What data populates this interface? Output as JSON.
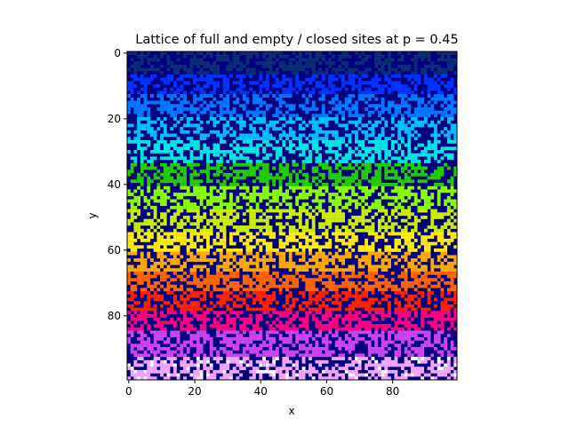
{
  "chart_data": {
    "type": "heatmap",
    "title": "Lattice of full and empty / closed sites at p = 0.45",
    "xlabel": "x",
    "ylabel": "y",
    "grid_size": 100,
    "xlim": [
      -0.5,
      99.5
    ],
    "ylim": [
      99.5,
      -0.5
    ],
    "y_inverted": true,
    "x_ticks": [
      0,
      20,
      40,
      60,
      80
    ],
    "y_ticks": [
      0,
      20,
      40,
      60,
      80
    ],
    "p": 0.45,
    "grid": false,
    "empty_color": "#00007f",
    "band_colors": [
      "#0b2d75",
      "#0033ff",
      "#0077ff",
      "#00bfff",
      "#00e5e5",
      "#22cc00",
      "#88ff00",
      "#ccee00",
      "#ffee00",
      "#ffaa00",
      "#ff6600",
      "#ff2200",
      "#ff0080",
      "#cc44ee",
      "#f2a6ff"
    ],
    "row_color_bands": [
      {
        "rows": [
          0,
          7
        ],
        "color": "#0b2d75"
      },
      {
        "rows": [
          7,
          13
        ],
        "color": "#0033ff"
      },
      {
        "rows": [
          13,
          20
        ],
        "color": "#0077ff"
      },
      {
        "rows": [
          20,
          27
        ],
        "color": "#00bfff"
      },
      {
        "rows": [
          27,
          34
        ],
        "color": "#00e5e5"
      },
      {
        "rows": [
          34,
          41
        ],
        "color": "#22cc00"
      },
      {
        "rows": [
          41,
          48
        ],
        "color": "#88ff00"
      },
      {
        "rows": [
          48,
          55
        ],
        "color": "#ccee00"
      },
      {
        "rows": [
          55,
          61
        ],
        "color": "#ffee00"
      },
      {
        "rows": [
          61,
          67
        ],
        "color": "#ffaa00"
      },
      {
        "rows": [
          67,
          73
        ],
        "color": "#ff6600"
      },
      {
        "rows": [
          73,
          79
        ],
        "color": "#ff2200"
      },
      {
        "rows": [
          79,
          85
        ],
        "color": "#ff0080"
      },
      {
        "rows": [
          85,
          93
        ],
        "color": "#cc44ee"
      },
      {
        "rows": [
          93,
          100
        ],
        "color": "#f2a6ff"
      }
    ],
    "extra_colors": {
      "white_fraction_bottom": 0.2,
      "white": "#ffffff"
    }
  }
}
